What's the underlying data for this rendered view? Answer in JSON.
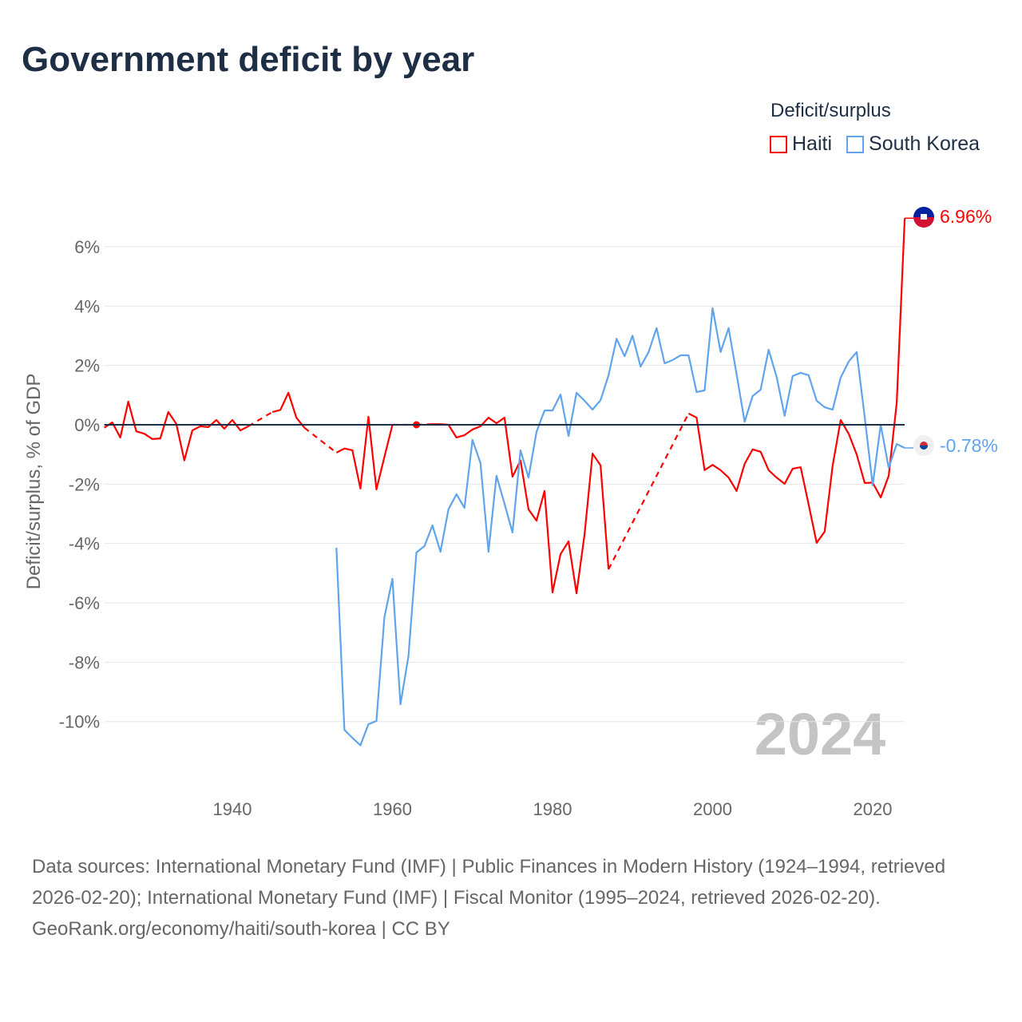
{
  "title": "Government deficit by year",
  "legend": {
    "title": "Deficit/surplus",
    "items": [
      {
        "label": "Haiti",
        "color": "#ff0000"
      },
      {
        "label": "South Korea",
        "color": "#5fa4ec"
      }
    ]
  },
  "end_labels": {
    "haiti": "6.96%",
    "south_korea": "-0.78%"
  },
  "year_watermark": "2024",
  "footer": {
    "sources": "Data sources: International Monetary Fund (IMF) | Public Finances in Modern History (1924–1994, retrieved 2026-02-20); International Monetary Fund (IMF) | Fiscal Monitor (1995–2024, retrieved 2026-02-20).",
    "credit": "GeoRank.org/economy/haiti/south-korea | CC BY"
  },
  "chart_data": {
    "type": "line",
    "title": "Government deficit by year",
    "xlabel": "",
    "ylabel": "Deficit/surplus, % of GDP",
    "xlim": [
      1924,
      2024
    ],
    "ylim": [
      -11.8,
      7.5
    ],
    "xticks": [
      1940,
      1960,
      1980,
      2000,
      2020
    ],
    "xtick_labels": [
      "1940",
      "1960",
      "1980",
      "2000",
      "2020"
    ],
    "yticks": [
      6,
      4,
      2,
      0,
      -2,
      -4,
      -6,
      -8,
      -10
    ],
    "ytick_labels": [
      "6%",
      "4%",
      "2%",
      "0%",
      "-2%",
      "-4%",
      "-6%",
      "-8%",
      "-10%"
    ],
    "grid": true,
    "legend_position": "top-right",
    "x_start": 1924,
    "series": [
      {
        "name": "Haiti",
        "color": "#ff0000",
        "values": [
          -0.1,
          0.08,
          -0.43,
          0.78,
          -0.22,
          -0.3,
          -0.48,
          -0.46,
          0.43,
          0.03,
          -1.2,
          -0.19,
          -0.05,
          -0.08,
          0.16,
          -0.13,
          0.16,
          -0.19,
          -0.05,
          null,
          null,
          0.43,
          0.5,
          1.08,
          0.24,
          -0.1,
          null,
          null,
          null,
          -0.94,
          -0.8,
          -0.86,
          -2.15,
          0.27,
          -2.18,
          -1.08,
          0.0,
          null,
          null,
          0.0,
          null,
          0.02,
          0.02,
          0.0,
          -0.43,
          -0.35,
          -0.16,
          -0.05,
          0.24,
          0.05,
          0.24,
          -1.75,
          -1.2,
          -2.85,
          -3.23,
          -2.23,
          -5.65,
          -4.36,
          -3.93,
          -5.68,
          -3.7,
          -0.97,
          -1.37,
          -4.87,
          null,
          null,
          null,
          null,
          null,
          null,
          null,
          null,
          null,
          0.38,
          0.24,
          -1.53,
          -1.35,
          -1.53,
          -1.78,
          -2.23,
          -1.32,
          -0.83,
          -0.91,
          -1.53,
          -1.78,
          -1.99,
          -1.48,
          -1.43,
          -2.69,
          -3.98,
          -3.6,
          -1.37,
          0.16,
          -0.3,
          -1.0,
          -1.96,
          -1.95,
          -2.45,
          -1.72,
          0.73,
          6.96
        ]
      },
      {
        "name": "South Korea",
        "color": "#5fa4ec",
        "values": [
          null,
          null,
          null,
          null,
          null,
          null,
          null,
          null,
          null,
          null,
          null,
          null,
          null,
          null,
          null,
          null,
          null,
          null,
          null,
          null,
          null,
          null,
          null,
          null,
          null,
          null,
          null,
          null,
          null,
          -4.14,
          -10.28,
          -10.55,
          -10.8,
          -10.09,
          -9.98,
          -6.48,
          -5.19,
          -9.42,
          -7.8,
          -4.3,
          -4.09,
          -3.39,
          -4.28,
          -2.85,
          -2.34,
          -2.8,
          -0.51,
          -1.29,
          -4.28,
          -1.72,
          -2.66,
          -3.63,
          -0.86,
          -1.78,
          -0.24,
          0.48,
          0.48,
          1.02,
          -0.38,
          1.08,
          0.81,
          0.51,
          0.83,
          1.67,
          2.9,
          2.31,
          3.0,
          1.96,
          2.45,
          3.26,
          2.07,
          2.18,
          2.34,
          2.34,
          1.1,
          1.16,
          3.93,
          2.45,
          3.26,
          1.7,
          0.1,
          0.97,
          1.18,
          2.53,
          1.61,
          0.3,
          1.64,
          1.75,
          1.67,
          0.81,
          0.59,
          0.51,
          1.59,
          2.13,
          2.45,
          0.27,
          -2.04,
          0.0,
          -1.45,
          -0.65,
          -0.78
        ]
      }
    ]
  }
}
